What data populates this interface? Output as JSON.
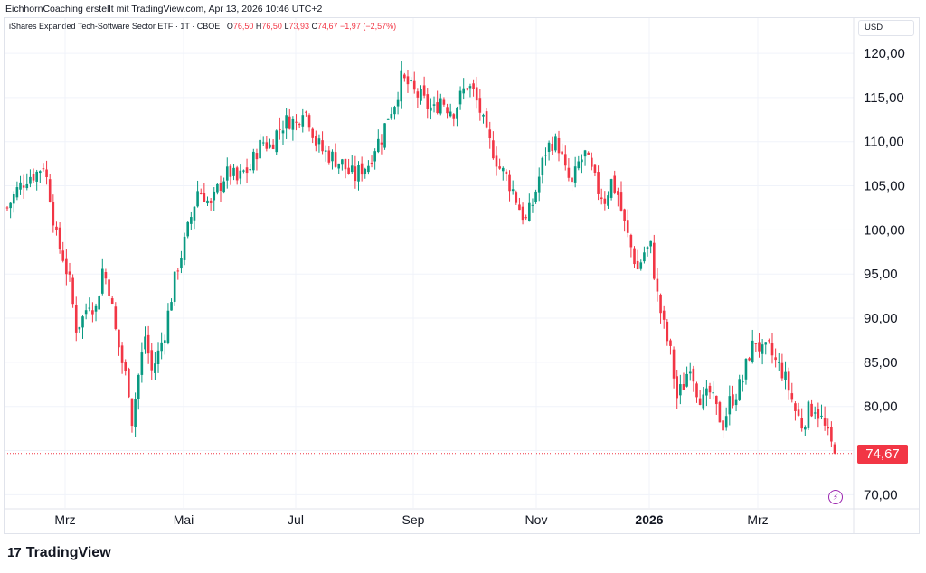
{
  "header": {
    "attribution": "EichhornCoaching erstellt mit TradingView.com, Apr 13, 2026 10:46 UTC+2"
  },
  "legend": {
    "symbol": "iShares Expanded Tech-Software Sector ETF · 1T · CBOE",
    "o_label": "O",
    "o_value": "76,50",
    "h_label": "H",
    "h_value": "76,50",
    "l_label": "L",
    "l_value": "73,93",
    "c_label": "C",
    "c_value": "74,67",
    "change": "−1,97 (−2,57%)"
  },
  "currency": "USD",
  "last_price_label": "74,67",
  "brand": {
    "logo": "17",
    "name": "TradingView"
  },
  "colors": {
    "up": "#089981",
    "down": "#f23645",
    "grid": "#f0f3fa",
    "last_price_line": "#f23645"
  },
  "icons": {
    "alert": "lightning-bolt-icon",
    "logo": "tradingview-logo-icon"
  },
  "chart_data": {
    "type": "candlestick",
    "y_axis": {
      "ticks": [
        "120,00",
        "115,00",
        "110,00",
        "105,00",
        "100,00",
        "95,00",
        "90,00",
        "85,00",
        "80,00",
        "75,00",
        "70,00"
      ],
      "tick_values": [
        120,
        115,
        110,
        105,
        100,
        95,
        90,
        85,
        80,
        75,
        70
      ],
      "ylim": [
        68.5,
        124
      ]
    },
    "x_axis": {
      "labels": [
        "Mrz",
        "Mai",
        "Jul",
        "Sep",
        "Nov",
        "2026",
        "Mrz"
      ],
      "bold_labels": [
        "2026"
      ]
    },
    "last_price": 74.67,
    "close_path": [
      [
        0,
        102.5
      ],
      [
        3,
        104.5
      ],
      [
        6,
        106.0
      ],
      [
        9,
        106.5
      ],
      [
        11,
        107.5
      ],
      [
        13,
        104.0
      ],
      [
        15,
        99.0
      ],
      [
        17,
        97.0
      ],
      [
        19,
        94.0
      ],
      [
        21,
        89.0
      ],
      [
        23,
        90.0
      ],
      [
        25,
        92.0
      ],
      [
        27,
        91.0
      ],
      [
        29,
        95.5
      ],
      [
        31,
        93.5
      ],
      [
        33,
        88.5
      ],
      [
        35,
        85.0
      ],
      [
        37,
        82.0
      ],
      [
        38,
        78.5
      ],
      [
        40,
        83.5
      ],
      [
        42,
        88.0
      ],
      [
        44,
        84.0
      ],
      [
        46,
        86.0
      ],
      [
        48,
        88.5
      ],
      [
        50,
        92.5
      ],
      [
        52,
        96.0
      ],
      [
        54,
        98.5
      ],
      [
        56,
        101.5
      ],
      [
        58,
        104.5
      ],
      [
        60,
        104.0
      ],
      [
        62,
        102.5
      ],
      [
        64,
        104.5
      ],
      [
        66,
        106.0
      ],
      [
        68,
        106.5
      ],
      [
        70,
        105.5
      ],
      [
        72,
        106.5
      ],
      [
        74,
        107.0
      ],
      [
        76,
        109.0
      ],
      [
        78,
        110.0
      ],
      [
        80,
        109.5
      ],
      [
        82,
        111.0
      ],
      [
        84,
        112.0
      ],
      [
        86,
        112.5
      ],
      [
        88,
        112.0
      ],
      [
        90,
        114.0
      ],
      [
        92,
        112.5
      ],
      [
        94,
        110.0
      ],
      [
        96,
        109.0
      ],
      [
        98,
        108.5
      ],
      [
        100,
        108.0
      ],
      [
        102,
        107.5
      ],
      [
        104,
        106.5
      ],
      [
        106,
        106.0
      ],
      [
        108,
        107.0
      ],
      [
        110,
        107.5
      ],
      [
        112,
        109.5
      ],
      [
        114,
        110.5
      ],
      [
        116,
        113.0
      ],
      [
        118,
        114.5
      ],
      [
        120,
        117.0
      ],
      [
        122,
        116.5
      ],
      [
        124,
        115.5
      ],
      [
        126,
        115.0
      ],
      [
        128,
        114.0
      ],
      [
        130,
        113.5
      ],
      [
        132,
        115.0
      ],
      [
        134,
        114.0
      ],
      [
        136,
        113.5
      ],
      [
        138,
        115.0
      ],
      [
        140,
        116.5
      ],
      [
        142,
        115.5
      ],
      [
        144,
        113.5
      ],
      [
        146,
        110.5
      ],
      [
        148,
        109.0
      ],
      [
        150,
        107.0
      ],
      [
        152,
        106.0
      ],
      [
        154,
        104.5
      ],
      [
        156,
        102.5
      ],
      [
        158,
        101.0
      ],
      [
        160,
        103.0
      ],
      [
        162,
        106.0
      ],
      [
        164,
        109.0
      ],
      [
        166,
        110.0
      ],
      [
        168,
        109.5
      ],
      [
        170,
        106.5
      ],
      [
        172,
        105.0
      ],
      [
        174,
        107.5
      ],
      [
        176,
        108.5
      ],
      [
        178,
        106.5
      ],
      [
        180,
        104.5
      ],
      [
        182,
        103.5
      ],
      [
        184,
        105.5
      ],
      [
        186,
        104.0
      ],
      [
        188,
        100.5
      ],
      [
        190,
        98.0
      ],
      [
        192,
        95.5
      ],
      [
        194,
        97.5
      ],
      [
        196,
        98.0
      ],
      [
        198,
        92.5
      ],
      [
        200,
        89.0
      ],
      [
        202,
        86.0
      ],
      [
        204,
        81.0
      ],
      [
        206,
        82.5
      ],
      [
        208,
        85.0
      ],
      [
        210,
        82.0
      ],
      [
        212,
        80.5
      ],
      [
        214,
        81.5
      ],
      [
        216,
        79.5
      ],
      [
        218,
        78.0
      ],
      [
        220,
        80.5
      ],
      [
        222,
        81.5
      ],
      [
        224,
        83.0
      ],
      [
        226,
        86.0
      ],
      [
        228,
        87.5
      ],
      [
        230,
        86.0
      ],
      [
        232,
        86.5
      ],
      [
        234,
        85.0
      ],
      [
        236,
        84.0
      ],
      [
        238,
        82.0
      ],
      [
        240,
        79.5
      ],
      [
        242,
        78.0
      ],
      [
        244,
        79.5
      ],
      [
        246,
        80.0
      ],
      [
        248,
        78.5
      ],
      [
        250,
        76.5
      ],
      [
        252,
        74.67
      ]
    ]
  }
}
